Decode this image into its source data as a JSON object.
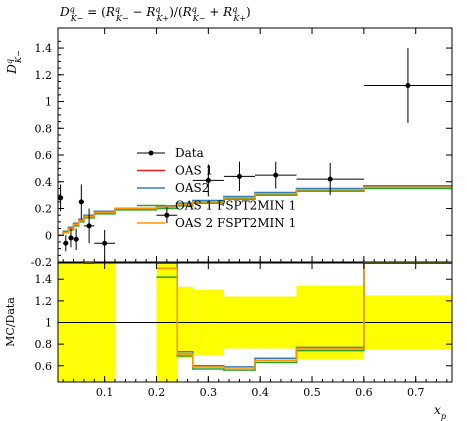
{
  "chart_data": {
    "type": "line",
    "title": "D^q_{K−} = (R^q_{K−} − R^q_{K+}) / (R^q_{K−} + R^q_{K+})",
    "title_parts": {
      "lhs": "D",
      "lhs_sup": "q",
      "lhs_sub": "K−",
      "eq": " = (",
      "r1": "R",
      "r1_sup": "q",
      "r1_sub": "K−",
      "minus": " − ",
      "r2": "R",
      "r2_sup": "q",
      "r2_sub": "K+",
      "mid": ")/(",
      "r3": "R",
      "r3_sup": "q",
      "r3_sub": "K−",
      "plus": " + ",
      "r4": "R",
      "r4_sup": "q",
      "r4_sub": "K+",
      "end": ")"
    },
    "xlabel": "x_p",
    "xlabel_parts": {
      "main": "x",
      "sub": "p"
    },
    "ylabel_parts": {
      "main": "D",
      "sup": "q",
      "sub": "K−"
    },
    "ratio_ylabel": "MC/Data",
    "xlim": [
      0.01,
      0.77
    ],
    "ylim": [
      -0.2,
      1.55
    ],
    "ratio_ylim": [
      0.45,
      1.55
    ],
    "x_ticks": [
      0.1,
      0.2,
      0.3,
      0.4,
      0.5,
      0.6,
      0.7
    ],
    "x_tick_labels": [
      "0.1",
      "0.2",
      "0.3",
      "0.4",
      "0.5",
      "0.6",
      "0.7"
    ],
    "y_ticks": [
      -0.2,
      0,
      0.2,
      0.4,
      0.6,
      0.8,
      1.0,
      1.2,
      1.4
    ],
    "y_tick_labels": [
      "-0.2",
      "0",
      "0.2",
      "0.4",
      "0.6",
      "0.8",
      "1",
      "1.2",
      "1.4"
    ],
    "ratio_y_ticks": [
      0.6,
      0.8,
      1.0,
      1.2,
      1.4
    ],
    "ratio_y_tick_labels": [
      "0.6",
      "0.8",
      "1",
      "1.2",
      "1.4"
    ],
    "legend_position": "center",
    "legend": [
      "Data",
      "OAS 1",
      "OAS2",
      "OAS 1 FSPT2MIN 1",
      "OAS 2 FSPT2MIN 1"
    ],
    "data_points": [
      {
        "x": 0.015,
        "xerr": 0.005,
        "y": 0.28,
        "yerr": 0.1
      },
      {
        "x": 0.025,
        "xerr": 0.005,
        "y": -0.06,
        "yerr": 0.06
      },
      {
        "x": 0.035,
        "xerr": 0.005,
        "y": -0.02,
        "yerr": 0.07
      },
      {
        "x": 0.045,
        "xerr": 0.005,
        "y": -0.03,
        "yerr": 0.08
      },
      {
        "x": 0.055,
        "xerr": 0.005,
        "y": 0.25,
        "yerr": 0.13
      },
      {
        "x": 0.07,
        "xerr": 0.01,
        "y": 0.07,
        "yerr": 0.13
      },
      {
        "x": 0.1,
        "xerr": 0.02,
        "y": -0.06,
        "yerr": 0.1
      },
      {
        "x": 0.22,
        "xerr": 0.02,
        "y": 0.15,
        "yerr": 0.06
      },
      {
        "x": 0.3,
        "xerr": 0.03,
        "y": 0.41,
        "yerr": 0.12
      },
      {
        "x": 0.36,
        "xerr": 0.03,
        "y": 0.44,
        "yerr": 0.11
      },
      {
        "x": 0.43,
        "xerr": 0.04,
        "y": 0.45,
        "yerr": 0.1
      },
      {
        "x": 0.535,
        "xerr": 0.065,
        "y": 0.42,
        "yerr": 0.12
      },
      {
        "x": 0.685,
        "xerr": 0.085,
        "y": 1.12,
        "yerr": 0.28
      }
    ],
    "bin_edges": [
      0.01,
      0.02,
      0.03,
      0.04,
      0.05,
      0.06,
      0.08,
      0.12,
      0.2,
      0.24,
      0.27,
      0.33,
      0.39,
      0.47,
      0.6,
      0.77
    ],
    "series": [
      {
        "name": "OAS 1",
        "color": "#e41a1c",
        "values": [
          0.0,
          0.02,
          0.05,
          0.08,
          0.11,
          0.14,
          0.17,
          0.2,
          0.21,
          0.23,
          0.25,
          0.28,
          0.31,
          0.34,
          0.36
        ]
      },
      {
        "name": "OAS2",
        "color": "#377eb8",
        "values": [
          0.0,
          0.03,
          0.06,
          0.09,
          0.12,
          0.15,
          0.18,
          0.2,
          0.22,
          0.24,
          0.26,
          0.29,
          0.32,
          0.35,
          0.37
        ]
      },
      {
        "name": "OAS 1 FSPT2MIN 1",
        "color": "#2ca02c",
        "values": [
          0.0,
          0.02,
          0.04,
          0.07,
          0.1,
          0.13,
          0.16,
          0.19,
          0.2,
          0.22,
          0.24,
          0.27,
          0.3,
          0.33,
          0.35
        ]
      },
      {
        "name": "OAS 2 FSPT2MIN 1",
        "color": "#ff9900",
        "values": [
          0.0,
          0.02,
          0.05,
          0.08,
          0.11,
          0.14,
          0.17,
          0.2,
          0.21,
          0.23,
          0.25,
          0.28,
          0.31,
          0.34,
          0.36
        ]
      }
    ],
    "ratio_band_edges": [
      0.01,
      0.02,
      0.03,
      0.04,
      0.05,
      0.06,
      0.08,
      0.12,
      0.2,
      0.24,
      0.27,
      0.33,
      0.39,
      0.47,
      0.6,
      0.77
    ],
    "ratio_band_halfwidth": [
      0.55,
      0.55,
      0.55,
      0.55,
      0.55,
      0.55,
      0.55,
      0,
      0.55,
      0.33,
      0.3,
      0.24,
      0.24,
      0.34,
      0.25
    ],
    "ratio_series": [
      {
        "name": "OAS 1",
        "color": "#e41a1c",
        "values": [
          null,
          null,
          null,
          null,
          null,
          5.0,
          null,
          null,
          1.5,
          0.71,
          0.59,
          0.58,
          0.65,
          0.76,
          1.55
        ]
      },
      {
        "name": "OAS2",
        "color": "#377eb8",
        "values": [
          null,
          null,
          null,
          null,
          null,
          5.0,
          null,
          null,
          1.6,
          0.73,
          0.6,
          0.59,
          0.67,
          0.77,
          1.55
        ]
      },
      {
        "name": "OAS 1 FSPT2MIN 1",
        "color": "#2ca02c",
        "values": [
          null,
          null,
          null,
          null,
          null,
          5.0,
          null,
          null,
          1.42,
          0.69,
          0.57,
          0.56,
          0.63,
          0.74,
          1.55
        ]
      },
      {
        "name": "OAS 2 FSPT2MIN 1",
        "color": "#ff9900",
        "values": [
          null,
          null,
          null,
          null,
          null,
          5.0,
          null,
          null,
          1.5,
          0.71,
          0.59,
          0.58,
          0.65,
          0.76,
          1.55
        ]
      }
    ],
    "colors": {
      "band": "#ffff00",
      "data": "#000000"
    }
  }
}
